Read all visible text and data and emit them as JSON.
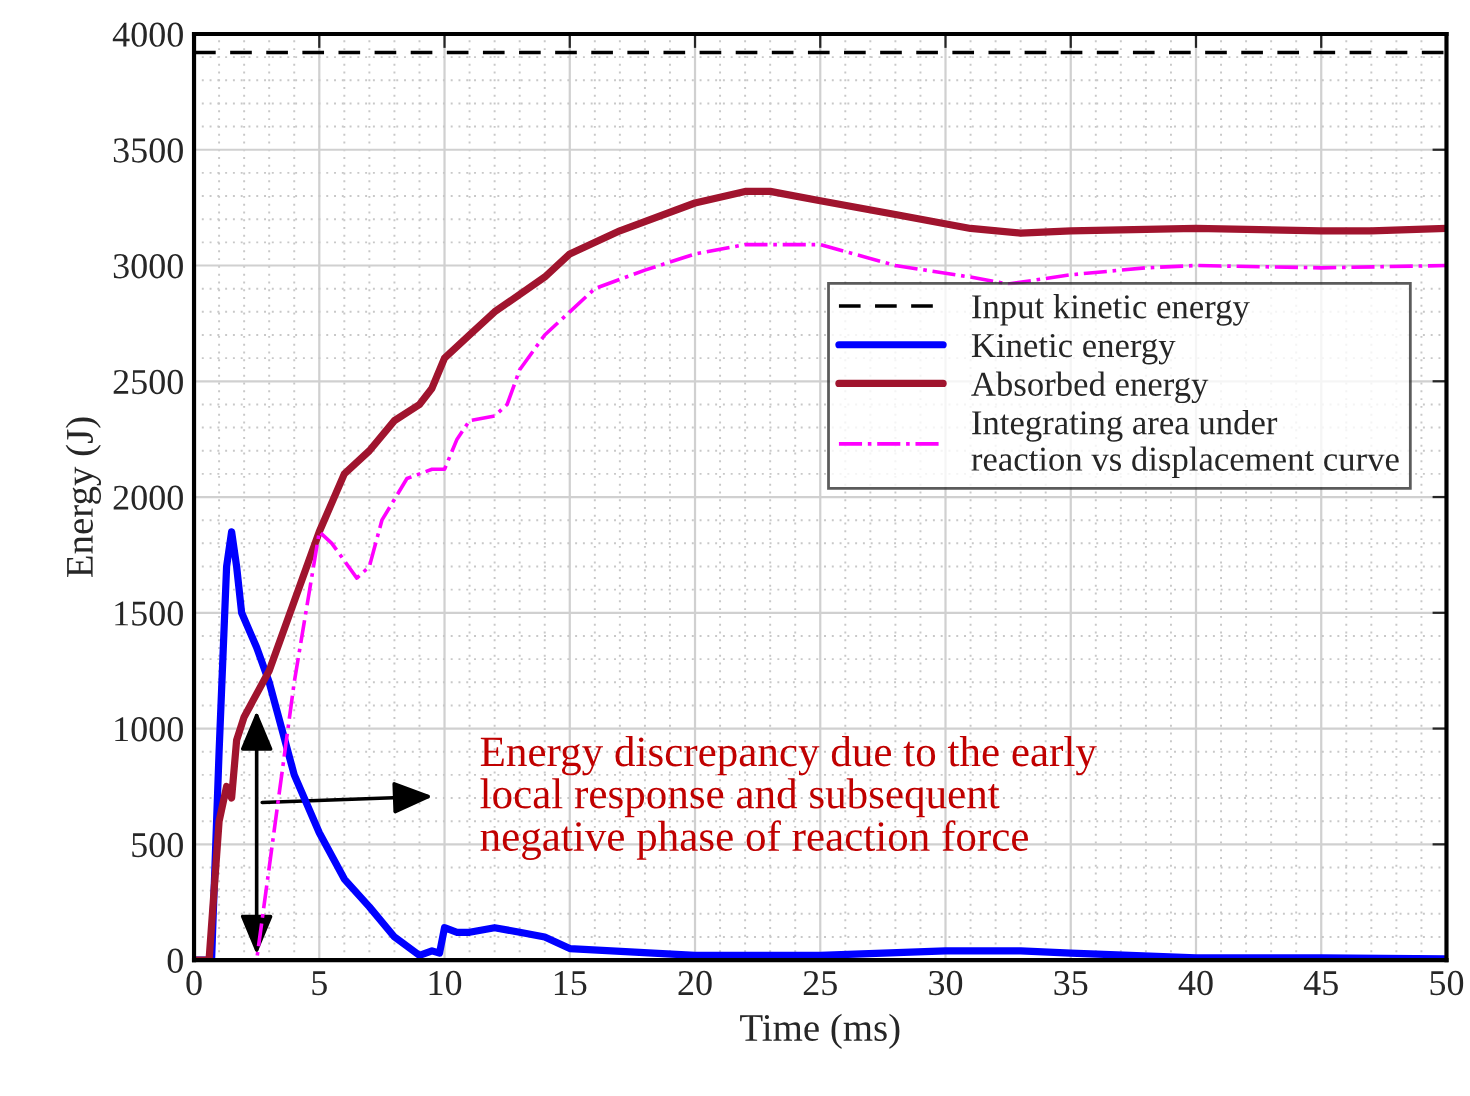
{
  "chart_data": {
    "type": "line",
    "xlabel": "Time (ms)",
    "ylabel": "Energy (J)",
    "xlim": [
      0,
      50
    ],
    "ylim": [
      0,
      4000
    ],
    "xticks": [
      0,
      5,
      10,
      15,
      20,
      25,
      30,
      35,
      40,
      45,
      50
    ],
    "yticks": [
      0,
      500,
      1000,
      1500,
      2000,
      2500,
      3000,
      3500,
      4000
    ],
    "grid": true,
    "legend": "right",
    "marker": "none",
    "series": [
      {
        "name": "Input kinetic energy",
        "color": "#000000",
        "line_style": "dashed",
        "x": [
          0,
          50
        ],
        "values": [
          3920,
          3920
        ]
      },
      {
        "name": "Kinetic energy",
        "color": "#0000ff",
        "line_style": "solid",
        "x": [
          0,
          0.7,
          1,
          1.3,
          1.5,
          1.7,
          1.9,
          2.5,
          3,
          3.5,
          4,
          5,
          6,
          7,
          8,
          9,
          9.5,
          9.8,
          10,
          10.5,
          11,
          12,
          13,
          14,
          15,
          20,
          25,
          30,
          33,
          35,
          40,
          45,
          50
        ],
        "values": [
          0,
          0,
          900,
          1700,
          1850,
          1700,
          1500,
          1350,
          1200,
          1000,
          800,
          550,
          350,
          230,
          100,
          20,
          40,
          30,
          140,
          120,
          120,
          140,
          120,
          100,
          50,
          20,
          20,
          40,
          40,
          30,
          10,
          10,
          5
        ]
      },
      {
        "name": "Absorbed energy",
        "color": "#a0142e",
        "line_style": "solid",
        "x": [
          0,
          0.6,
          1,
          1.3,
          1.5,
          1.7,
          2,
          3,
          4,
          5,
          6,
          7,
          8,
          9,
          9.5,
          10,
          11,
          12,
          14,
          15,
          17,
          20,
          22,
          23,
          25,
          28,
          31,
          33,
          35,
          40,
          45,
          47,
          50
        ],
        "values": [
          0,
          0,
          600,
          750,
          700,
          950,
          1050,
          1250,
          1550,
          1850,
          2100,
          2200,
          2330,
          2400,
          2470,
          2600,
          2700,
          2800,
          2950,
          3050,
          3150,
          3270,
          3320,
          3320,
          3280,
          3220,
          3160,
          3140,
          3150,
          3160,
          3150,
          3150,
          3160
        ]
      },
      {
        "name": "Integrating area under\nreaction vs displacement curve",
        "color": "#ff00ff",
        "line_style": "dashdot",
        "x": [
          0,
          2.5,
          3,
          4,
          5,
          5.5,
          6.5,
          7,
          7.5,
          8.5,
          9.5,
          10,
          10.5,
          11,
          12,
          12.5,
          13,
          14,
          15,
          16,
          18,
          20,
          22,
          25,
          28,
          31,
          32.5,
          35,
          38,
          40,
          45,
          50
        ],
        "values": [
          0,
          0,
          400,
          1200,
          1850,
          1800,
          1650,
          1700,
          1900,
          2080,
          2120,
          2120,
          2250,
          2330,
          2350,
          2400,
          2550,
          2700,
          2800,
          2900,
          2980,
          3050,
          3090,
          3090,
          3000,
          2950,
          2920,
          2960,
          2990,
          3000,
          2990,
          3000
        ]
      }
    ],
    "annotations": [
      "Energy discrepancy due to the early\nlocal response and subsequent\nnegative phase of reaction force"
    ]
  }
}
